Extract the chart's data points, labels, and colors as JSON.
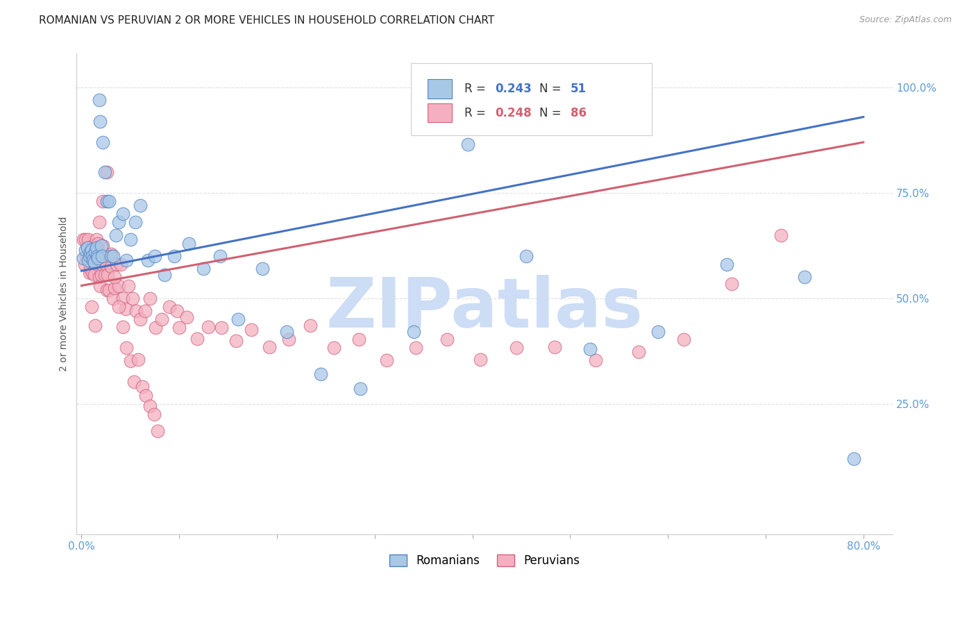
{
  "title": "ROMANIAN VS PERUVIAN 2 OR MORE VEHICLES IN HOUSEHOLD CORRELATION CHART",
  "source": "Source: ZipAtlas.com",
  "ylabel": "2 or more Vehicles in Household",
  "xlim": [
    -0.005,
    0.83
  ],
  "ylim": [
    -0.06,
    1.08
  ],
  "xticks": [
    0.0,
    0.1,
    0.2,
    0.3,
    0.4,
    0.5,
    0.6,
    0.7,
    0.8
  ],
  "xticklabels": [
    "0.0%",
    "",
    "",
    "",
    "",
    "",
    "",
    "",
    "80.0%"
  ],
  "yticks": [
    0.25,
    0.5,
    0.75,
    1.0
  ],
  "yticklabels": [
    "25.0%",
    "50.0%",
    "75.0%",
    "100.0%"
  ],
  "romanian_R": "0.243",
  "romanian_N": "51",
  "peruvian_R": "0.248",
  "peruvian_N": "86",
  "romanian_color": "#a8c8e8",
  "peruvian_color": "#f4b0c0",
  "romanian_edge_color": "#5080c0",
  "peruvian_edge_color": "#d06080",
  "romanian_line_color": "#4472c4",
  "peruvian_line_color": "#d06070",
  "watermark": "ZIPatlas",
  "watermark_color": "#ccddf5",
  "background_color": "#ffffff",
  "grid_color": "#e0e0e0",
  "title_fontsize": 11,
  "tick_label_color": "#5b9bd5",
  "legend_color_r": "#4472c4",
  "legend_color_p": "#d06070",
  "romanian_x": [
    0.002,
    0.004,
    0.006,
    0.007,
    0.008,
    0.009,
    0.01,
    0.011,
    0.012,
    0.013,
    0.014,
    0.015,
    0.016,
    0.017,
    0.018,
    0.019,
    0.02,
    0.021,
    0.022,
    0.024,
    0.026,
    0.028,
    0.03,
    0.032,
    0.035,
    0.038,
    0.042,
    0.046,
    0.05,
    0.055,
    0.06,
    0.068,
    0.075,
    0.085,
    0.095,
    0.11,
    0.125,
    0.142,
    0.16,
    0.185,
    0.21,
    0.245,
    0.285,
    0.34,
    0.395,
    0.455,
    0.52,
    0.59,
    0.66,
    0.74,
    0.79
  ],
  "romanian_y": [
    0.595,
    0.615,
    0.62,
    0.59,
    0.6,
    0.61,
    0.615,
    0.6,
    0.59,
    0.585,
    0.61,
    0.62,
    0.6,
    0.595,
    0.97,
    0.92,
    0.625,
    0.6,
    0.87,
    0.8,
    0.73,
    0.73,
    0.6,
    0.6,
    0.65,
    0.68,
    0.7,
    0.59,
    0.64,
    0.68,
    0.72,
    0.59,
    0.6,
    0.555,
    0.6,
    0.63,
    0.57,
    0.6,
    0.45,
    0.57,
    0.42,
    0.32,
    0.285,
    0.42,
    0.865,
    0.6,
    0.38,
    0.42,
    0.58,
    0.55,
    0.12
  ],
  "peruvian_x": [
    0.002,
    0.003,
    0.004,
    0.005,
    0.006,
    0.007,
    0.008,
    0.009,
    0.01,
    0.011,
    0.012,
    0.013,
    0.014,
    0.015,
    0.016,
    0.017,
    0.018,
    0.019,
    0.02,
    0.021,
    0.022,
    0.023,
    0.024,
    0.025,
    0.026,
    0.027,
    0.028,
    0.03,
    0.032,
    0.034,
    0.036,
    0.038,
    0.04,
    0.042,
    0.045,
    0.048,
    0.052,
    0.056,
    0.06,
    0.065,
    0.07,
    0.076,
    0.082,
    0.09,
    0.098,
    0.108,
    0.118,
    0.13,
    0.143,
    0.158,
    0.174,
    0.192,
    0.212,
    0.234,
    0.258,
    0.284,
    0.312,
    0.342,
    0.374,
    0.408,
    0.445,
    0.484,
    0.526,
    0.57,
    0.616,
    0.665,
    0.716,
    0.01,
    0.014,
    0.018,
    0.022,
    0.026,
    0.03,
    0.034,
    0.038,
    0.042,
    0.046,
    0.05,
    0.054,
    0.058,
    0.062,
    0.066,
    0.07,
    0.074,
    0.078,
    0.1
  ],
  "peruvian_y": [
    0.64,
    0.58,
    0.64,
    0.6,
    0.62,
    0.64,
    0.56,
    0.57,
    0.6,
    0.56,
    0.625,
    0.555,
    0.605,
    0.64,
    0.58,
    0.63,
    0.55,
    0.53,
    0.555,
    0.58,
    0.625,
    0.59,
    0.555,
    0.58,
    0.52,
    0.555,
    0.52,
    0.575,
    0.5,
    0.525,
    0.58,
    0.53,
    0.58,
    0.5,
    0.475,
    0.53,
    0.5,
    0.47,
    0.45,
    0.47,
    0.5,
    0.43,
    0.45,
    0.48,
    0.47,
    0.455,
    0.405,
    0.432,
    0.43,
    0.4,
    0.425,
    0.385,
    0.403,
    0.435,
    0.383,
    0.402,
    0.353,
    0.382,
    0.403,
    0.355,
    0.382,
    0.385,
    0.353,
    0.373,
    0.403,
    0.535,
    0.65,
    0.48,
    0.435,
    0.68,
    0.73,
    0.8,
    0.605,
    0.55,
    0.48,
    0.432,
    0.382,
    0.352,
    0.302,
    0.355,
    0.29,
    0.27,
    0.245,
    0.225,
    0.185,
    0.43
  ]
}
